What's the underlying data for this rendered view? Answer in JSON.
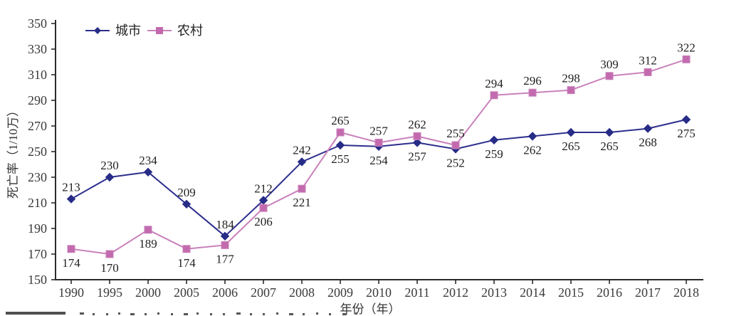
{
  "chart_data": {
    "type": "line",
    "title": "",
    "xlabel": "年份（年）",
    "ylabel": "死亡率（1/10万）",
    "ylim": [
      150,
      350
    ],
    "ytick_step": 20,
    "yticks": [
      150,
      170,
      190,
      210,
      230,
      250,
      270,
      290,
      310,
      330,
      350
    ],
    "grid": false,
    "legend_position": "top-left",
    "legend": [
      "城市",
      "农村"
    ],
    "categories": [
      "1990",
      "1995",
      "2000",
      "2005",
      "2006",
      "2007",
      "2008",
      "2009",
      "2010",
      "2011",
      "2012",
      "2013",
      "2014",
      "2015",
      "2016",
      "2017",
      "2018"
    ],
    "series": [
      {
        "name": "城市",
        "marker": "diamond",
        "line_color": "#2d2f8e",
        "marker_color": "#272c87",
        "values": [
          213,
          230,
          234,
          209,
          184,
          212,
          242,
          255,
          254,
          257,
          252,
          259,
          262,
          265,
          265,
          268,
          275
        ],
        "label_side": [
          "above",
          "above",
          "above",
          "above",
          "above",
          "above",
          "above",
          "below",
          "below",
          "below",
          "below",
          "below",
          "below",
          "below",
          "below",
          "below",
          "below"
        ]
      },
      {
        "name": "农村",
        "marker": "square",
        "line_color": "#c981bb",
        "marker_color": "#c36aae",
        "values": [
          174,
          170,
          189,
          174,
          177,
          206,
          221,
          265,
          257,
          262,
          255,
          294,
          296,
          298,
          309,
          312,
          322
        ],
        "label_side": [
          "below",
          "below",
          "below",
          "below",
          "below",
          "below",
          "below",
          "above",
          "above",
          "above",
          "above",
          "above",
          "above",
          "above",
          "above",
          "above",
          "above"
        ]
      }
    ],
    "axis_color": "#2b2b2b",
    "tick_label_color": "#3a3a3a",
    "data_label_color": "#1f1f1f"
  }
}
